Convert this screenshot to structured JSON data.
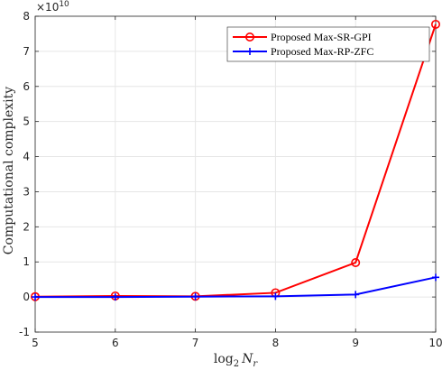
{
  "chart_data": {
    "type": "line",
    "x": [
      5,
      6,
      7,
      8,
      9,
      10
    ],
    "xlim": [
      5,
      10
    ],
    "ylim": [
      -1,
      8
    ],
    "y_scale_exponent": "×10",
    "y_scale_power": "10",
    "xticks": [
      "5",
      "6",
      "7",
      "8",
      "9",
      "10"
    ],
    "yticks": [
      "-1",
      "0",
      "1",
      "2",
      "3",
      "4",
      "5",
      "6",
      "7",
      "8"
    ],
    "xlabel_base": "log",
    "xlabel_sub": "2",
    "xlabel_var": "N",
    "xlabel_var_sub": "r",
    "ylabel": "Computational complexity",
    "grid": true,
    "legend_position": "top-right",
    "series": [
      {
        "name": "Proposed Max-SR-GPI",
        "color": "#ff0000",
        "marker": "circle",
        "values": [
          0.01,
          0.03,
          0.02,
          0.12,
          0.98,
          7.77
        ]
      },
      {
        "name": "Proposed Max-RP-ZFC",
        "color": "#0000ff",
        "marker": "plus",
        "values": [
          0.0,
          0.0,
          0.01,
          0.02,
          0.07,
          0.56
        ]
      }
    ]
  }
}
